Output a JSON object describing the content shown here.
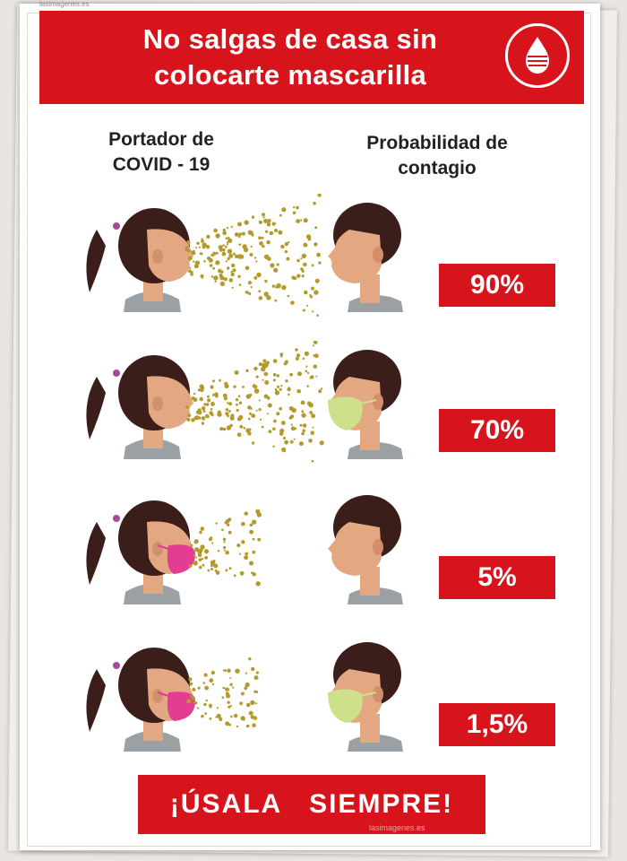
{
  "source_top": "lasimagenes.es",
  "banner": {
    "title": "No salgas de casa sin\ncolocarte mascarilla",
    "logo_icon": "blood-drop-icon"
  },
  "columns": {
    "carrier": "Portador  de\nCOVID - 19",
    "probability": "Probabilidad de\ncontagio"
  },
  "rows": [
    {
      "percent": "90%",
      "carrier_mask": false,
      "receiver_mask": false
    },
    {
      "percent": "70%",
      "carrier_mask": false,
      "receiver_mask": true
    },
    {
      "percent": "5%",
      "carrier_mask": true,
      "receiver_mask": false
    },
    {
      "percent": "1,5%",
      "carrier_mask": true,
      "receiver_mask": true
    }
  ],
  "bottom_banner": "¡ÚSALA   SIEMPRE!",
  "source_bottom": "lasimagenes.es",
  "colors": {
    "red": "#d7141c",
    "hair": "#3b1e1a",
    "skin": "#e3a882",
    "shirt": "#9aa0a3",
    "droplets": "#b39a2a",
    "mask_pink": "#e33d93",
    "mask_green": "#cfe08a"
  }
}
